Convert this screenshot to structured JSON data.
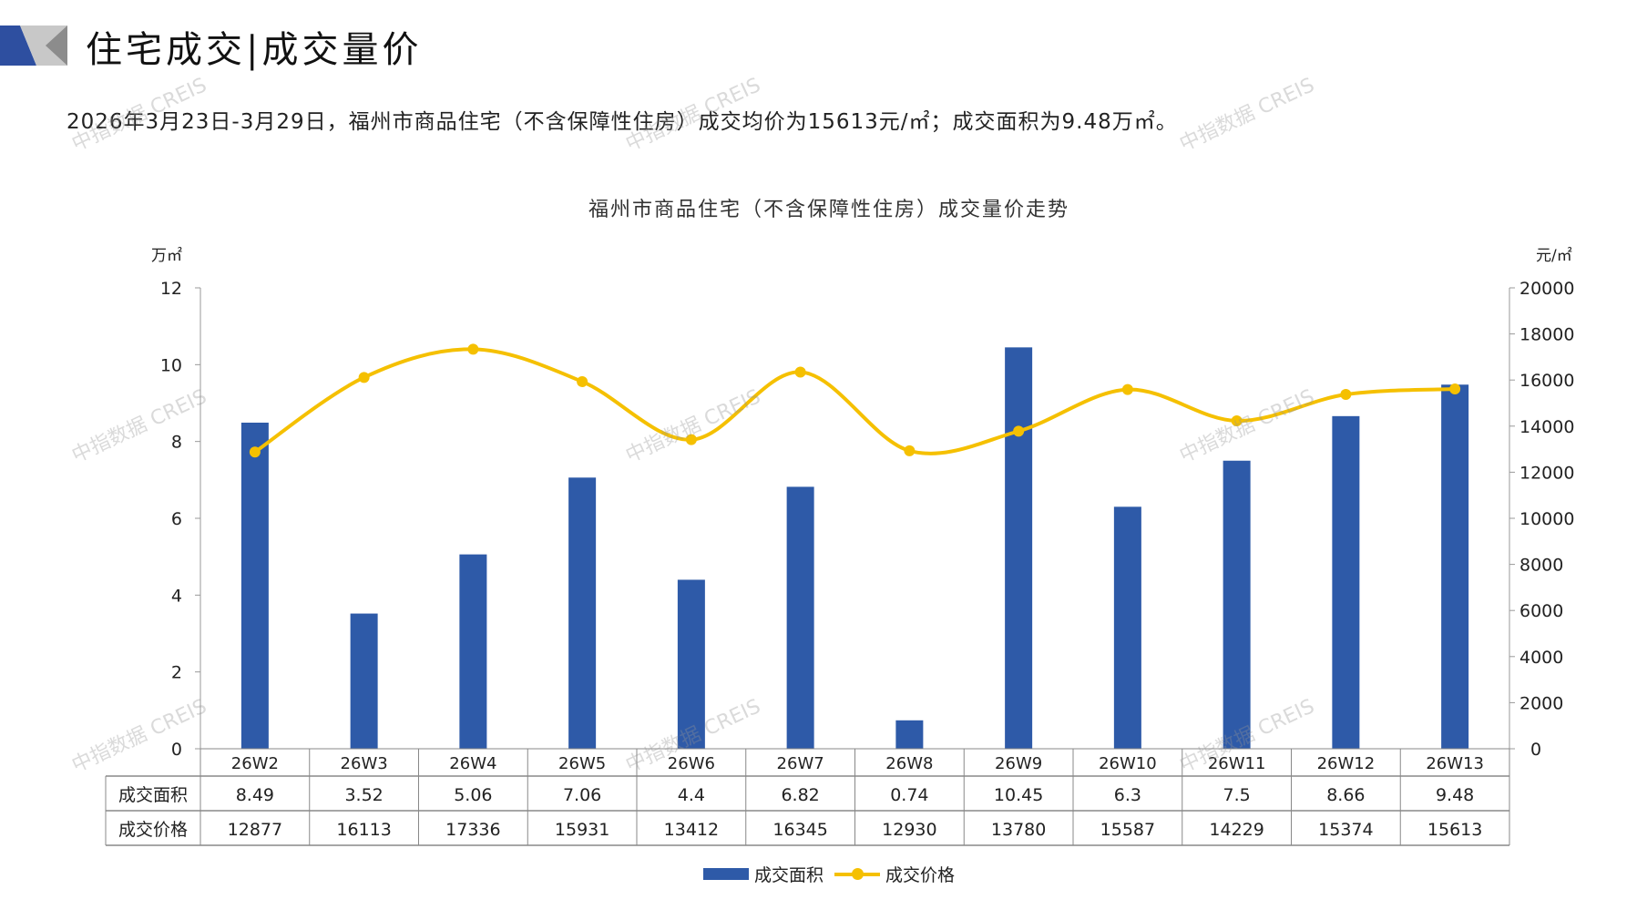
{
  "header": {
    "title": "住宅成交|成交量价",
    "subtitle": "2026年3月23日-3月29日，福州市商品住宅（不含保障性住房）成交均价为15613元/㎡；成交面积为9.48万㎡。"
  },
  "watermark": "中指数据 CREIS",
  "colors": {
    "bar": "#2E5AA8",
    "line": "#F5C000",
    "logo_blue": "#2E4FA0",
    "logo_gray": "#A0A0A0"
  },
  "chart_data": {
    "type": "bar+line",
    "title": "福州市商品住宅（不含保障性住房）成交量价走势",
    "y_left_label": "万㎡",
    "y_right_label": "元/㎡",
    "y_left_range": [
      0,
      12
    ],
    "y_left_ticks": [
      "0",
      "2",
      "4",
      "6",
      "8",
      "10",
      "12"
    ],
    "y_right_range": [
      0,
      20000
    ],
    "y_right_ticks": [
      "0",
      "2000",
      "4000",
      "6000",
      "8000",
      "10000",
      "12000",
      "14000",
      "16000",
      "18000",
      "20000"
    ],
    "categories": [
      "26W2",
      "26W3",
      "26W4",
      "26W5",
      "26W6",
      "26W7",
      "26W8",
      "26W9",
      "26W10",
      "26W11",
      "26W12",
      "26W13"
    ],
    "series": [
      {
        "name": "成交面积",
        "type": "bar",
        "axis": "left",
        "values": [
          8.49,
          3.52,
          5.06,
          7.06,
          4.4,
          6.82,
          0.74,
          10.45,
          6.3,
          7.5,
          8.66,
          9.48
        ],
        "labels": [
          "8.49",
          "3.52",
          "5.06",
          "7.06",
          "4.4",
          "6.82",
          "0.74",
          "10.45",
          "6.3",
          "7.5",
          "8.66",
          "9.48"
        ]
      },
      {
        "name": "成交价格",
        "type": "line",
        "axis": "right",
        "values": [
          12877,
          16113,
          17336,
          15931,
          13412,
          16345,
          12930,
          13780,
          15587,
          14229,
          15374,
          15613
        ],
        "labels": [
          "12877",
          "16113",
          "17336",
          "15931",
          "13412",
          "16345",
          "12930",
          "13780",
          "15587",
          "14229",
          "15374",
          "15613"
        ]
      }
    ],
    "legend_position": "bottom",
    "data_table": true
  }
}
